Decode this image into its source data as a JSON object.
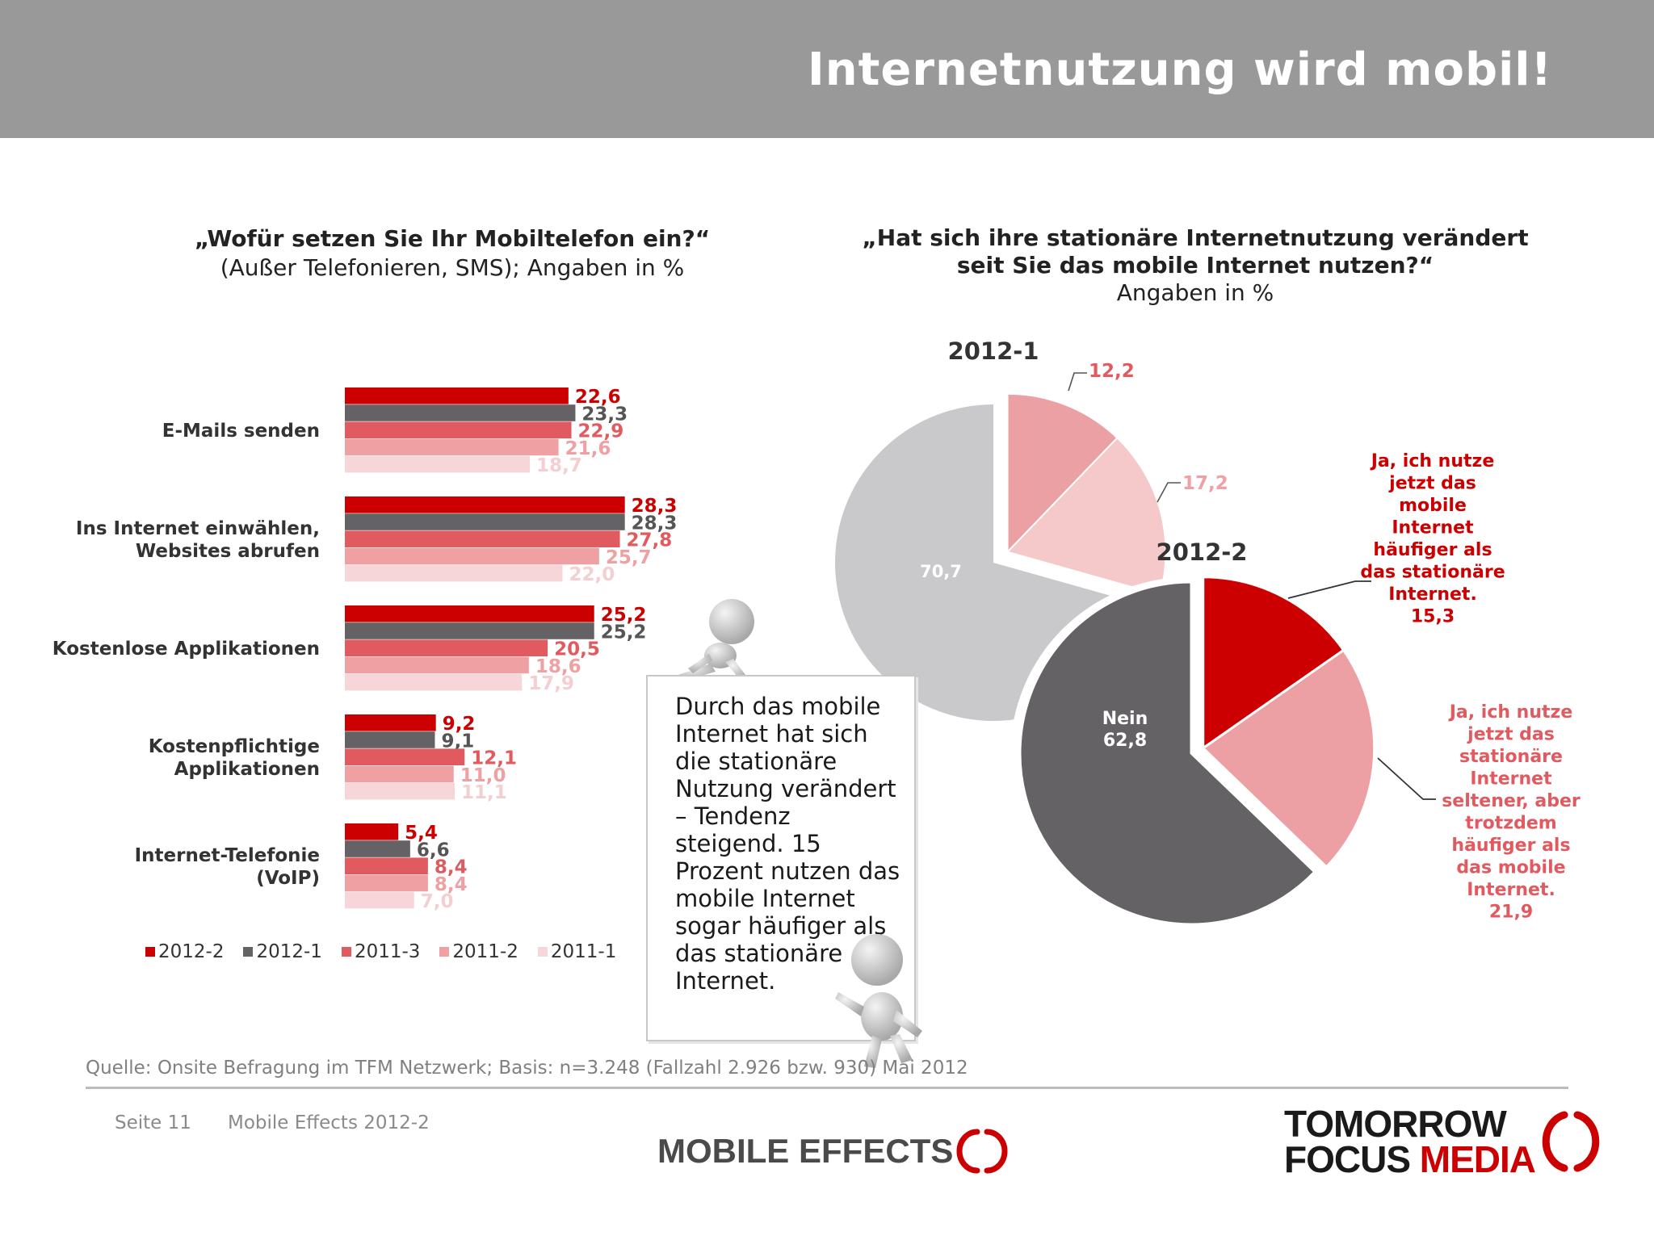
{
  "header": {
    "title": "Internetnutzung wird mobil!"
  },
  "left_question": {
    "line1": "„Wofür setzen Sie Ihr Mobiltelefon ein?“",
    "line2": "(Außer Telefonieren, SMS); Angaben in %"
  },
  "right_question": {
    "line1": "„Hat sich ihre stationäre Internetnutzung verändert",
    "line2": "seit Sie das mobile Internet nutzen?“",
    "line3": "Angaben in %"
  },
  "colors": {
    "s2012_2": "#cc0000",
    "s2012_1": "#646264",
    "s2011_3": "#e05a60",
    "s2011_2": "#eea0a2",
    "s2011_1": "#f6d6d8",
    "pie_grey_light": "#c9c8cb"
  },
  "chart_data": [
    {
      "type": "bar",
      "orientation": "horizontal",
      "categories": [
        "E-Mails senden",
        "Ins Internet einwählen, Websites abrufen",
        "Kostenlose Applikationen",
        "Kostenpflichtige Applikationen",
        "Internet-Telefonie (VoIP)"
      ],
      "category_lines": [
        [
          "E-Mails senden"
        ],
        [
          "Ins Internet einwählen,",
          "Websites abrufen"
        ],
        [
          "Kostenlose Applikationen"
        ],
        [
          "Kostenpflichtige",
          "Applikationen"
        ],
        [
          "Internet-Telefonie",
          "(VoIP)"
        ]
      ],
      "series": [
        {
          "name": "2012-2",
          "values": [
            22.6,
            28.3,
            25.2,
            9.2,
            5.4
          ],
          "labels": [
            "22,6",
            "28,3",
            "25,2",
            "9,2",
            "5,4"
          ]
        },
        {
          "name": "2012-1",
          "values": [
            23.3,
            28.3,
            25.2,
            9.1,
            6.6
          ],
          "labels": [
            "23,3",
            "28,3",
            "25,2",
            "9,1",
            "6,6"
          ]
        },
        {
          "name": "2011-3",
          "values": [
            22.9,
            27.8,
            20.5,
            12.1,
            8.4
          ],
          "labels": [
            "22,9",
            "27,8",
            "20,5",
            "12,1",
            "8,4"
          ]
        },
        {
          "name": "2011-2",
          "values": [
            21.6,
            25.7,
            18.6,
            11.0,
            8.4
          ],
          "labels": [
            "21,6",
            "25,7",
            "18,6",
            "11,0",
            "8,4"
          ]
        },
        {
          "name": "2011-1",
          "values": [
            18.7,
            22.0,
            17.9,
            11.1,
            7.0
          ],
          "labels": [
            "18,7",
            "22,0",
            "17,9",
            "11,1",
            "7,0"
          ]
        }
      ],
      "legend_position": "bottom"
    },
    {
      "type": "pie",
      "title": "2012-1",
      "slices": [
        {
          "value": 12.2,
          "label": "12,2"
        },
        {
          "value": 17.2,
          "label": "17,2"
        },
        {
          "value": 70.7,
          "label": "70,7"
        }
      ]
    },
    {
      "type": "pie",
      "title": "2012-2",
      "slices": [
        {
          "value": 15.3,
          "label": "Ja, ich nutze jetzt das mobile Internet häufiger als das stationäre Internet.",
          "label_lines": [
            "Ja, ich nutze",
            "jetzt das",
            "mobile",
            "Internet",
            "häufiger als",
            "das stationäre",
            "Internet."
          ],
          "value_label": "15,3"
        },
        {
          "value": 21.9,
          "label": "Ja, ich nutze jetzt das stationäre Internet seltener, aber trotzdem häufiger als das mobile Internet.",
          "label_lines": [
            "Ja, ich nutze",
            "jetzt das",
            "stationäre",
            "Internet",
            "seltener, aber",
            "trotzdem",
            "häufiger als",
            "das mobile",
            "Internet."
          ],
          "value_label": "21,9"
        },
        {
          "value": 62.8,
          "label": "Nein",
          "value_label": "62,8"
        }
      ]
    }
  ],
  "note": {
    "text": "Durch das mobile Internet hat sich die stationäre Nutzung verändert – Tendenz steigend. 15 Prozent nutzen das mobile Internet sogar häufiger als das stationäre Internet.",
    "lines": [
      "Durch das mobile",
      "Internet hat sich",
      "die stationäre",
      "Nutzung verändert",
      "– Tendenz",
      "steigend. 15",
      "Prozent nutzen das",
      "mobile Internet",
      "sogar häufiger als",
      "das stationäre",
      "Internet."
    ]
  },
  "footer": {
    "source": "Quelle: Onsite Befragung im TFM Netzwerk; Basis: n=3.248 (Fallzahl 2.926 bzw. 930) Mai 2012",
    "page": "Seite 11",
    "report": "Mobile Effects 2012-2",
    "logo_mobile": "MOBILE EFFECTS",
    "logo_tfm_line1": "TOMORROW",
    "logo_tfm_line2a": "FOCUS",
    "logo_tfm_line2b": "MEDIA"
  }
}
